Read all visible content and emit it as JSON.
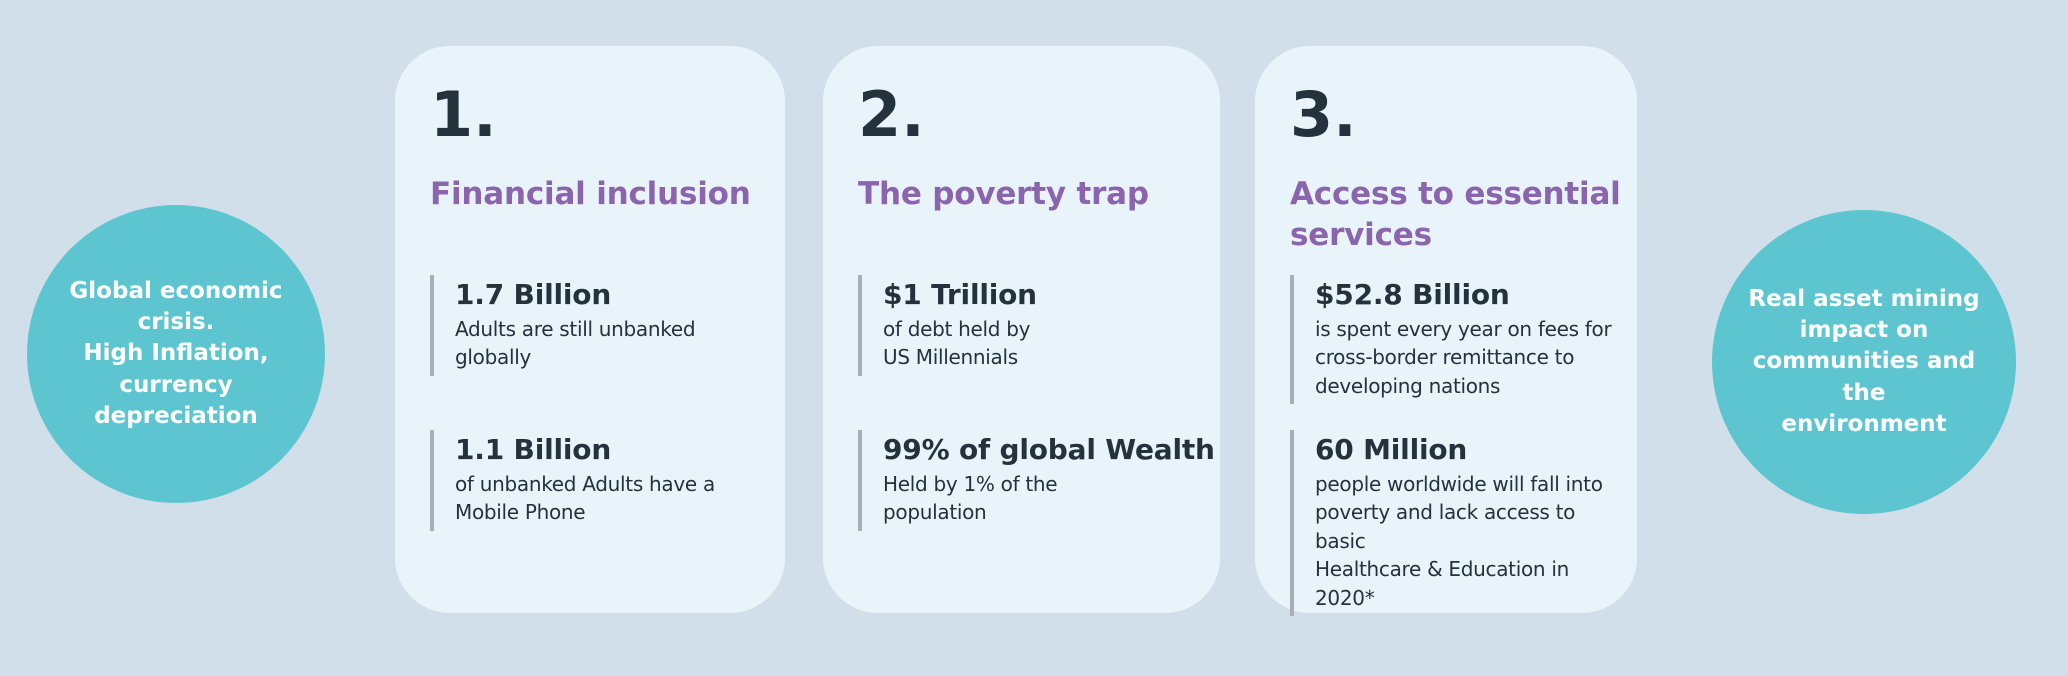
{
  "colors": {
    "background": "#d1dfea",
    "circle": "#5cc5d0",
    "card": "#e9f3fa",
    "heading": "#8a64ad",
    "dark_text": "#24323e",
    "accent_line": "#a7aeb5",
    "circle_text": "#ffffff"
  },
  "left_circle": {
    "text": "Global economic\ncrisis.\nHigh Inflation,\ncurrency\ndepreciation"
  },
  "right_circle": {
    "text": "Real asset  mining\nimpact on\ncommunities and the\nenvironment"
  },
  "cards": [
    {
      "number": "1.",
      "title": "Financial inclusion",
      "stats": [
        {
          "value": "1.7 Billion",
          "description": "Adults are still unbanked\nglobally"
        },
        {
          "value": "1.1 Billion",
          "description": "of unbanked Adults have a\nMobile Phone"
        }
      ]
    },
    {
      "number": "2.",
      "title": "The poverty trap",
      "stats": [
        {
          "value": "$1 Trillion",
          "description": "of debt held by\nUS Millennials"
        },
        {
          "value": "99% of global Wealth",
          "description": "Held by 1% of the\npopulation"
        }
      ]
    },
    {
      "number": "3.",
      "title": "Access to essential\nservices",
      "stats": [
        {
          "value": "$52.8 Billion",
          "description": "is spent every year on fees for\ncross-border remittance to\ndeveloping nations"
        },
        {
          "value": "60 Million",
          "description": "people worldwide will fall into\npoverty and lack access to basic\nHealthcare & Education in 2020*"
        }
      ]
    }
  ]
}
